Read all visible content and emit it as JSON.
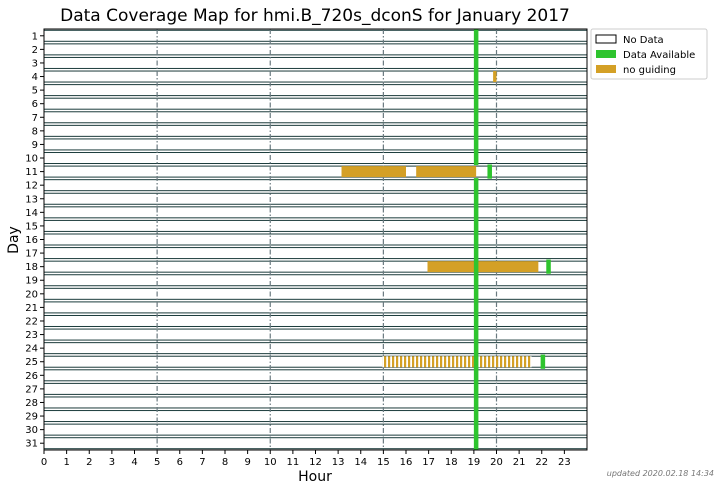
{
  "chart_data": {
    "type": "timeline",
    "title": "Data Coverage Map for hmi.B_720s_dconS for January 2017",
    "xlabel": "Hour",
    "ylabel": "Day",
    "xlim": [
      0,
      24
    ],
    "x_ticks": [
      0,
      1,
      2,
      3,
      4,
      5,
      6,
      7,
      8,
      9,
      10,
      11,
      12,
      13,
      14,
      15,
      16,
      17,
      18,
      19,
      20,
      21,
      22,
      23
    ],
    "days": [
      1,
      2,
      3,
      4,
      5,
      6,
      7,
      8,
      9,
      10,
      11,
      12,
      13,
      14,
      15,
      16,
      17,
      18,
      19,
      20,
      21,
      22,
      23,
      24,
      25,
      26,
      27,
      28,
      29,
      30,
      31
    ],
    "dashed_vertical_lines_at_hour": [
      5,
      10,
      15,
      20
    ],
    "legend": {
      "position": "top-right",
      "entries": [
        {
          "key": "no_data",
          "label": "No Data",
          "color": "#ffffff",
          "border": "#000000"
        },
        {
          "key": "available",
          "label": "Data Available",
          "color": "#2ec42e"
        },
        {
          "key": "no_guiding",
          "label": "no guiding",
          "color": "#d4a026"
        }
      ]
    },
    "default_status": "no_data",
    "intervals": [
      {
        "day": 1,
        "start": 19.0,
        "end": 19.2,
        "status": "available"
      },
      {
        "day": 2,
        "start": 19.0,
        "end": 19.2,
        "status": "available"
      },
      {
        "day": 3,
        "start": 19.0,
        "end": 19.2,
        "status": "available"
      },
      {
        "day": 4,
        "start": 19.0,
        "end": 19.2,
        "status": "available"
      },
      {
        "day": 4,
        "start": 19.85,
        "end": 20.0,
        "status": "no_guiding"
      },
      {
        "day": 5,
        "start": 19.0,
        "end": 19.2,
        "status": "available"
      },
      {
        "day": 6,
        "start": 19.0,
        "end": 19.2,
        "status": "available"
      },
      {
        "day": 7,
        "start": 19.0,
        "end": 19.2,
        "status": "available"
      },
      {
        "day": 8,
        "start": 19.0,
        "end": 19.2,
        "status": "available"
      },
      {
        "day": 9,
        "start": 19.0,
        "end": 19.2,
        "status": "available"
      },
      {
        "day": 10,
        "start": 19.0,
        "end": 19.2,
        "status": "available"
      },
      {
        "day": 11,
        "start": 13.15,
        "end": 16.0,
        "status": "no_guiding"
      },
      {
        "day": 11,
        "start": 16.45,
        "end": 19.1,
        "status": "no_guiding"
      },
      {
        "day": 11,
        "start": 19.6,
        "end": 19.8,
        "status": "available"
      },
      {
        "day": 12,
        "start": 19.0,
        "end": 19.2,
        "status": "available"
      },
      {
        "day": 13,
        "start": 19.0,
        "end": 19.2,
        "status": "available"
      },
      {
        "day": 14,
        "start": 19.0,
        "end": 19.2,
        "status": "available"
      },
      {
        "day": 15,
        "start": 19.0,
        "end": 19.2,
        "status": "available"
      },
      {
        "day": 16,
        "start": 19.0,
        "end": 19.2,
        "status": "available"
      },
      {
        "day": 17,
        "start": 19.0,
        "end": 19.2,
        "status": "available"
      },
      {
        "day": 18,
        "start": 16.95,
        "end": 21.85,
        "status": "no_guiding"
      },
      {
        "day": 18,
        "start": 19.0,
        "end": 19.2,
        "status": "available"
      },
      {
        "day": 18,
        "start": 22.2,
        "end": 22.4,
        "status": "available"
      },
      {
        "day": 19,
        "start": 19.0,
        "end": 19.2,
        "status": "available"
      },
      {
        "day": 20,
        "start": 19.0,
        "end": 19.2,
        "status": "available"
      },
      {
        "day": 21,
        "start": 19.0,
        "end": 19.2,
        "status": "available"
      },
      {
        "day": 22,
        "start": 19.0,
        "end": 19.2,
        "status": "available"
      },
      {
        "day": 23,
        "start": 19.0,
        "end": 19.2,
        "status": "available"
      },
      {
        "day": 24,
        "start": 19.0,
        "end": 19.2,
        "status": "available"
      },
      {
        "day": 25,
        "start": 14.95,
        "end": 21.55,
        "status": "no_guiding",
        "pattern": "striped"
      },
      {
        "day": 25,
        "start": 19.0,
        "end": 19.2,
        "status": "available"
      },
      {
        "day": 25,
        "start": 21.95,
        "end": 22.15,
        "status": "available"
      },
      {
        "day": 26,
        "start": 19.0,
        "end": 19.2,
        "status": "available"
      },
      {
        "day": 27,
        "start": 19.0,
        "end": 19.2,
        "status": "available"
      },
      {
        "day": 28,
        "start": 19.0,
        "end": 19.2,
        "status": "available"
      },
      {
        "day": 29,
        "start": 19.0,
        "end": 19.2,
        "status": "available"
      },
      {
        "day": 30,
        "start": 19.0,
        "end": 19.2,
        "status": "available"
      },
      {
        "day": 31,
        "start": 19.0,
        "end": 19.2,
        "status": "available"
      }
    ]
  },
  "footer": {
    "updated": "updated 2020.02.18 14:34"
  }
}
